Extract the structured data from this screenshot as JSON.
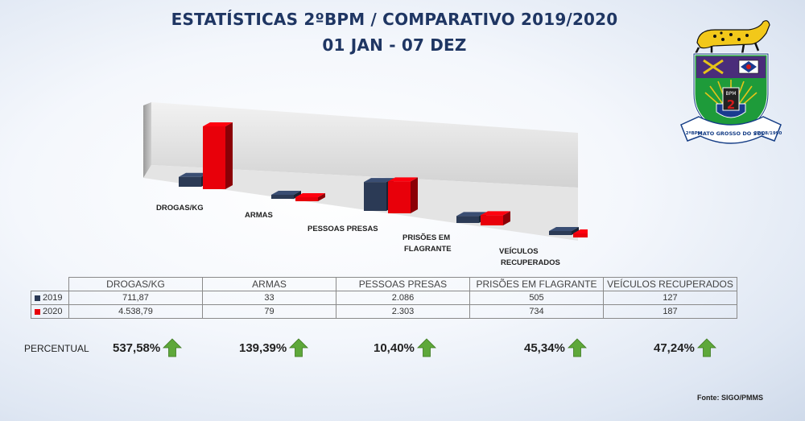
{
  "header": {
    "title_line1": "ESTATÍSTICAS 2ºBPM / COMPARATIVO 2019/2020",
    "title_line2": "01 JAN - 07 DEZ"
  },
  "emblem": {
    "text_bpm": "BPM",
    "text_num": "2",
    "text_state": "MATO GROSSO DO SUL",
    "text_left": "2ºBPM",
    "text_right": "27/08/1990"
  },
  "chart_data": {
    "type": "bar",
    "categories": [
      "DROGAS/KG",
      "ARMAS",
      "PESSOAS PRESAS",
      "PRISÕES EM FLAGRANTE",
      "VEÍCULOS RECUPERADOS"
    ],
    "category_lines": [
      [
        "DROGAS/KG"
      ],
      [
        "ARMAS"
      ],
      [
        "PESSOAS PRESAS"
      ],
      [
        "PRISÕES EM",
        "FLAGRANTE"
      ],
      [
        "VEÍCULOS",
        "RECUPERADOS"
      ]
    ],
    "series": [
      {
        "name": "2019",
        "values": [
          711.87,
          33,
          2086,
          505,
          127
        ],
        "display": [
          "711,87",
          "33",
          "2.086",
          "505",
          "127"
        ],
        "color": "#2b3a55"
      },
      {
        "name": "2020",
        "values": [
          4538.79,
          79,
          2303,
          734,
          187
        ],
        "display": [
          "4.538,79",
          "79",
          "2.303",
          "734",
          "187"
        ],
        "color": "#e8000a"
      }
    ],
    "grid": false,
    "legend": "table"
  },
  "table": {
    "headers": [
      "DROGAS/KG",
      "ARMAS",
      "PESSOAS PRESAS",
      "PRISÕES EM FLAGRANTE",
      "VEÍCULOS RECUPERADOS"
    ]
  },
  "percentual": {
    "label": "PERCENTUAL",
    "values": [
      "537,58%",
      "139,39%",
      "10,40%",
      "45,34%",
      "47,24%"
    ],
    "arrow_icon": "green-up-arrow-icon",
    "arrow_color": "#5ea83a"
  },
  "source": "Fonte: SIGO/PMMS"
}
